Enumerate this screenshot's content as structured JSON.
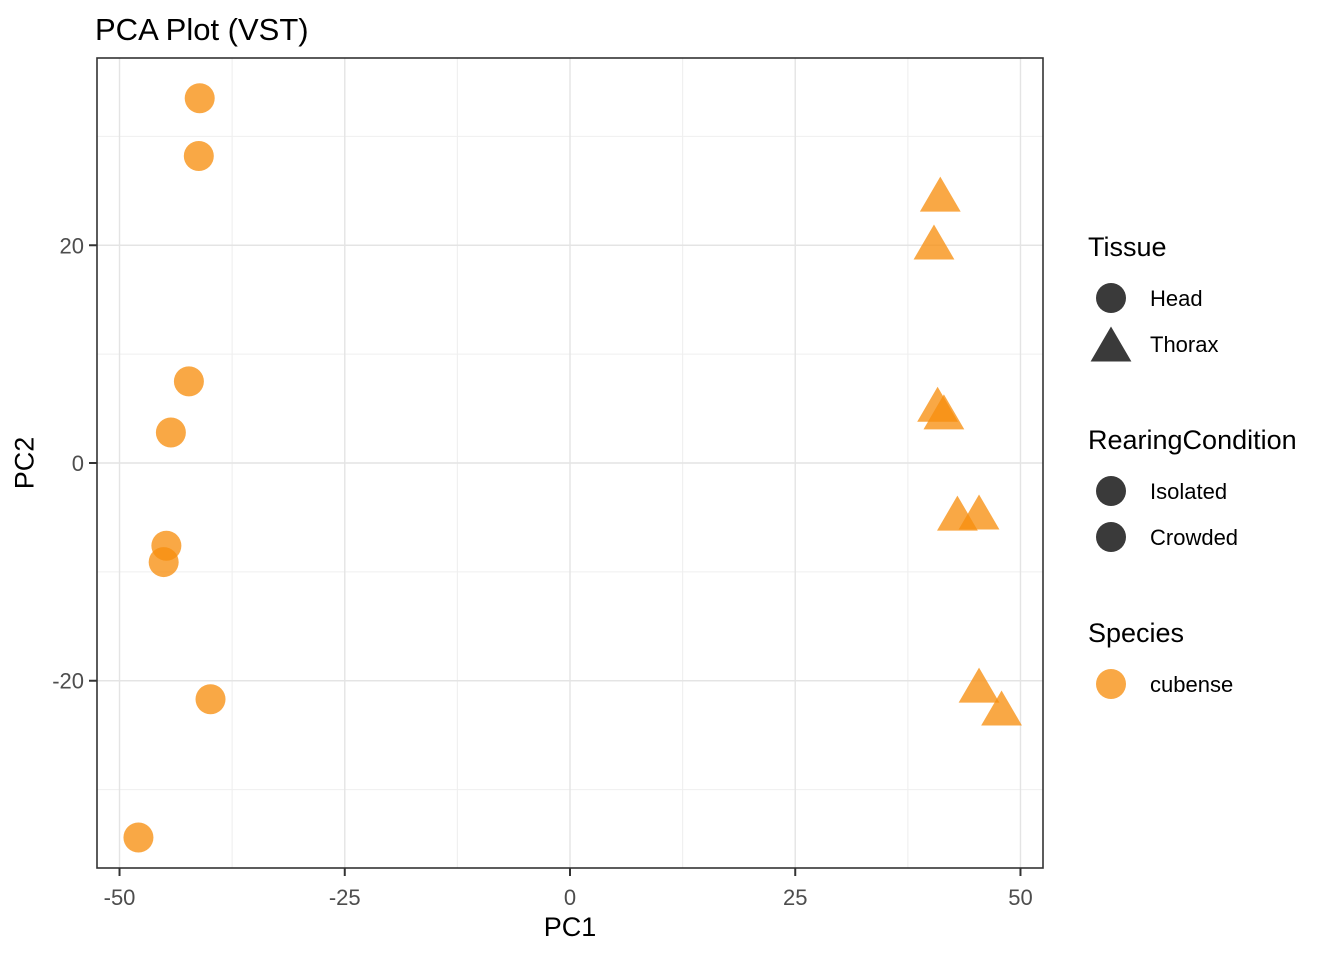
{
  "chart_data": {
    "type": "scatter",
    "title": "PCA Plot (VST)",
    "xlabel": "PC1",
    "ylabel": "PC2",
    "xlim": [
      -52.5,
      52.5
    ],
    "ylim": [
      -37.2,
      37.2
    ],
    "x_major_ticks": [
      -50,
      -25,
      0,
      25,
      50
    ],
    "x_minor_ticks": [
      -37.5,
      -12.5,
      12.5,
      37.5
    ],
    "y_major_ticks": [
      -20,
      0,
      20
    ],
    "y_minor_ticks": [
      -30,
      -10,
      10,
      30
    ],
    "grid": true,
    "legend_position": "right",
    "point_color": "#F78E0D",
    "point_alpha": 0.77,
    "series": [
      {
        "name": "Head",
        "marker": "circle",
        "points": [
          {
            "pc1": -41.1,
            "pc2": 33.5
          },
          {
            "pc1": -41.2,
            "pc2": 28.2
          },
          {
            "pc1": -42.3,
            "pc2": 7.5
          },
          {
            "pc1": -44.3,
            "pc2": 2.8
          },
          {
            "pc1": -44.8,
            "pc2": -7.6
          },
          {
            "pc1": -45.1,
            "pc2": -9.1
          },
          {
            "pc1": -39.9,
            "pc2": -21.7
          },
          {
            "pc1": -47.9,
            "pc2": -34.4
          }
        ]
      },
      {
        "name": "Thorax",
        "marker": "triangle",
        "points": [
          {
            "pc1": 41.1,
            "pc2": 24.7
          },
          {
            "pc1": 40.4,
            "pc2": 20.3
          },
          {
            "pc1": 40.8,
            "pc2": 5.4
          },
          {
            "pc1": 41.5,
            "pc2": 4.7
          },
          {
            "pc1": 43.0,
            "pc2": -4.6
          },
          {
            "pc1": 45.4,
            "pc2": -4.5
          },
          {
            "pc1": 45.4,
            "pc2": -20.4
          },
          {
            "pc1": 47.9,
            "pc2": -22.5
          }
        ]
      }
    ]
  },
  "legend": {
    "dark_key_color": "#3A3A3A",
    "orange_key_color": "#F78E0D",
    "orange_key_alpha": 0.77,
    "groups": [
      {
        "title": "Tissue",
        "items": [
          {
            "label": "Head",
            "marker": "circle",
            "key": "dark"
          },
          {
            "label": "Thorax",
            "marker": "triangle",
            "key": "dark"
          }
        ]
      },
      {
        "title": "RearingCondition",
        "items": [
          {
            "label": "Isolated",
            "marker": "circle",
            "key": "dark"
          },
          {
            "label": "Crowded",
            "marker": "circle",
            "key": "dark"
          }
        ]
      },
      {
        "title": "Species",
        "items": [
          {
            "label": "cubense",
            "marker": "circle",
            "key": "orange"
          }
        ]
      }
    ]
  },
  "style": {
    "panel_border_color": "#333333",
    "grid_major_color": "#E4E4E4",
    "grid_minor_color": "#EFEFEF",
    "tick_color": "#333333",
    "tick_label_color": "#4D4D4D"
  }
}
